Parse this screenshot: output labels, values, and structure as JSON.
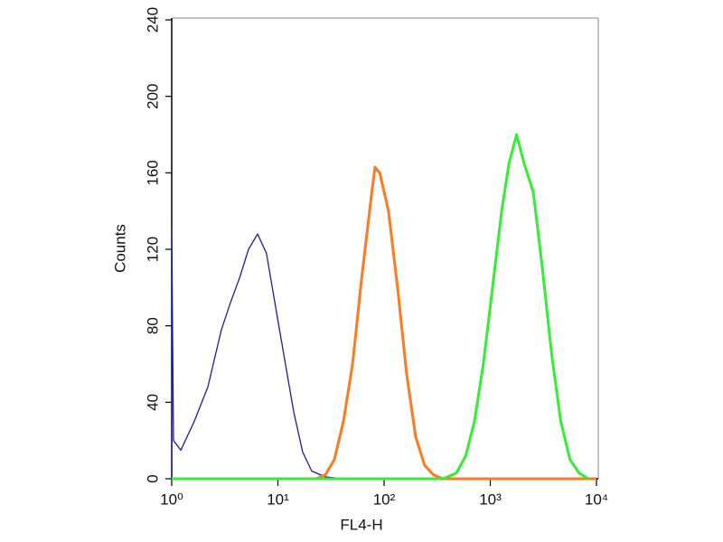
{
  "chart_data": {
    "type": "line",
    "xlabel": "FL4-H",
    "ylabel": "Counts",
    "xscale": "log",
    "xlim": [
      1,
      10000
    ],
    "xticks": [
      {
        "value": 1,
        "label": "10⁰"
      },
      {
        "value": 10,
        "label": "10¹"
      },
      {
        "value": 100,
        "label": "10²"
      },
      {
        "value": 1000,
        "label": "10³"
      },
      {
        "value": 10000,
        "label": "10⁴"
      }
    ],
    "ylim": [
      0,
      240
    ],
    "yticks": [
      0,
      40,
      80,
      120,
      160,
      200,
      240
    ],
    "series": [
      {
        "color": "#1c1ca8",
        "width": 1.3,
        "x": [
          1,
          1,
          1.04,
          1.22,
          1.63,
          2.19,
          2.94,
          3.57,
          4.35,
          5.29,
          6.43,
          7.8,
          9.5,
          11.6,
          14.1,
          17.1,
          20.8,
          28,
          41.4
        ],
        "values": [
          0,
          130,
          20,
          15,
          30,
          48,
          78,
          92,
          105,
          120,
          128,
          118,
          90,
          62,
          35,
          14,
          4,
          1,
          0
        ]
      },
      {
        "color": "#ff7a1e",
        "width": 3,
        "x": [
          12.8,
          23,
          28,
          34,
          41.4,
          50.5,
          61.5,
          74.8,
          82,
          91,
          110,
          134,
          163,
          198,
          241,
          293,
          359,
          10000
        ],
        "values": [
          0,
          0,
          2,
          10,
          30,
          60,
          105,
          145,
          163,
          160,
          140,
          100,
          55,
          22,
          7,
          2,
          0,
          0
        ]
      },
      {
        "color": "#33ee33",
        "width": 3,
        "x": [
          1,
          359,
          480,
          587,
          710,
          860,
          1050,
          1280,
          1500,
          1770,
          2080,
          2540,
          3100,
          3780,
          4610,
          5630,
          6870,
          8380
        ],
        "values": [
          0,
          0,
          3,
          12,
          30,
          60,
          100,
          140,
          165,
          180,
          165,
          150,
          110,
          65,
          30,
          10,
          3,
          0
        ]
      }
    ]
  }
}
